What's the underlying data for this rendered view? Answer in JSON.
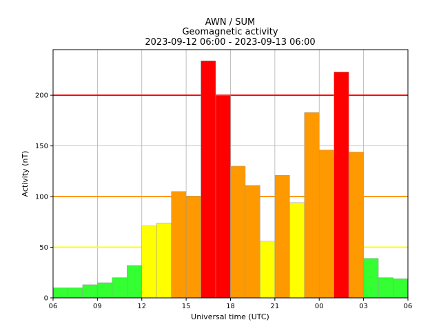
{
  "chart_data": {
    "type": "bar",
    "title_lines": [
      "AWN / SUM",
      "Geomagnetic activity",
      "2023-09-12 06:00 - 2023-09-13 06:00"
    ],
    "xlabel": "Universal time (UTC)",
    "ylabel": "Activity (nT)",
    "x_ticks": [
      "06",
      "09",
      "12",
      "15",
      "18",
      "21",
      "00",
      "03",
      "06"
    ],
    "y_ticks": [
      0,
      50,
      100,
      150,
      200
    ],
    "ylim": [
      0,
      245
    ],
    "grid": true,
    "bar_hours": 24,
    "values": [
      10,
      10,
      13,
      15,
      20,
      32,
      71,
      74,
      105,
      100,
      234,
      200,
      130,
      111,
      56,
      121,
      94,
      183,
      146,
      223,
      144,
      39,
      20,
      19
    ],
    "thresholds": [
      {
        "value": 50,
        "color": "#ffff00"
      },
      {
        "value": 100,
        "color": "#ff9900"
      },
      {
        "value": 200,
        "color": "#ff0000"
      }
    ],
    "level_colors": {
      "low": "#33ff33",
      "moderate": "#ffff00",
      "active": "#ff9900",
      "storm": "#ff0000"
    }
  }
}
